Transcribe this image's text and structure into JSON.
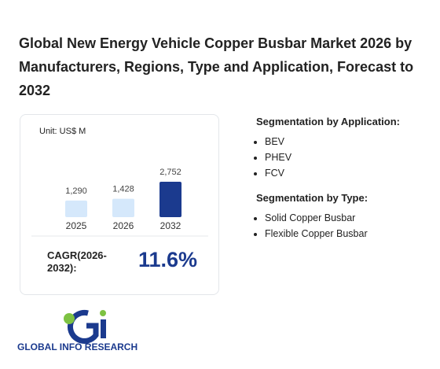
{
  "title": "Global New Energy Vehicle Copper Busbar Market 2026 by Manufacturers, Regions, Type and Application, Forecast to 2032",
  "chart": {
    "unit": "Unit: US$ M",
    "categories": [
      "2025",
      "2026",
      "2032"
    ],
    "values": [
      1290,
      1428,
      2752
    ],
    "value_labels": [
      "1,290",
      "1,428",
      "2,752"
    ],
    "colors": [
      "#d5e8fb",
      "#d5e8fb",
      "#1b3a8e"
    ]
  },
  "cagr": {
    "label": "CAGR(2026-2032):",
    "value": "11.6%"
  },
  "application": {
    "heading": "Segmentation by Application:",
    "items": [
      "BEV",
      "PHEV",
      "FCV"
    ]
  },
  "type": {
    "heading": "Segmentation by Type:",
    "items": [
      "Solid Copper Busbar",
      "Flexible Copper Busbar"
    ]
  },
  "logo": {
    "text": "GLOBAL INFO RESEARCH"
  }
}
